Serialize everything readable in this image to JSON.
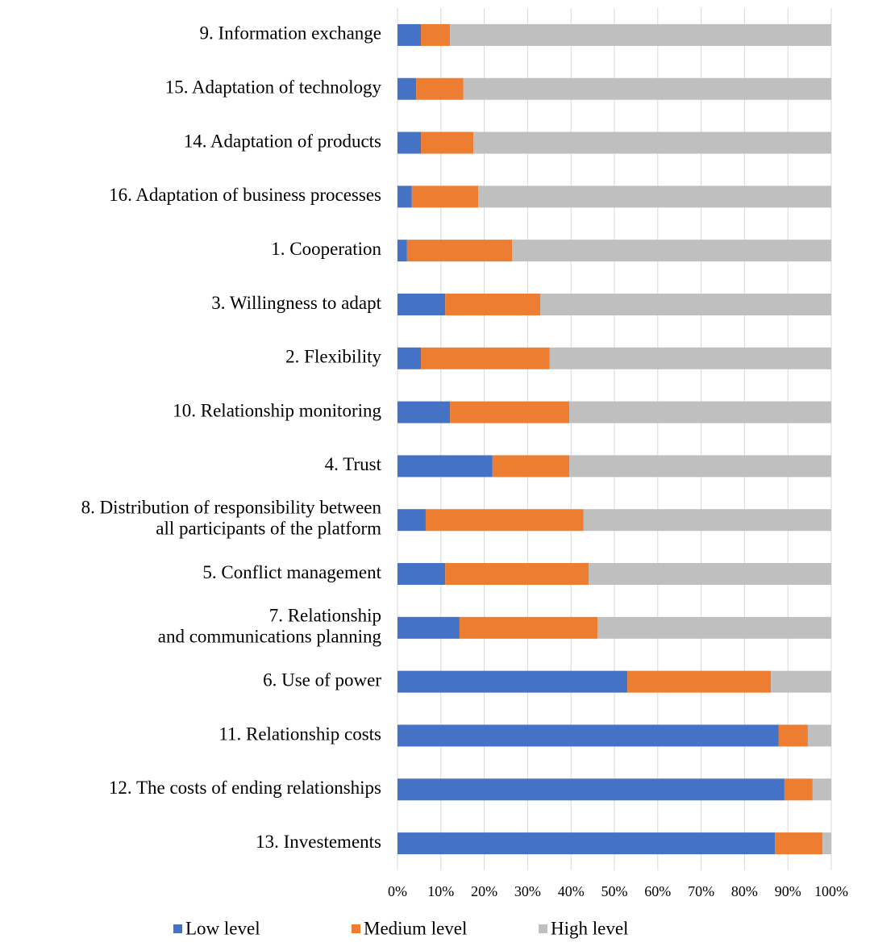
{
  "chart_data": {
    "type": "stacked-barh",
    "categories": [
      "9. Information exchange",
      "15. Adaptation of technology",
      "14. Adaptation of products",
      "16. Adaptation of business processes",
      "1. Cooperation",
      "3. Willingness to adapt",
      "2. Flexibility",
      "10. Relationship monitoring",
      "4. Trust",
      "8. Distribution of responsibility between\nall participants of the platform",
      "5. Conflict management",
      "7. Relationship\nand communications planning",
      "6. Use of power",
      "11. Relationship costs",
      "12. The costs of ending relationships",
      "13. Investements"
    ],
    "series": [
      {
        "name": "Low level",
        "color": "#4472c4",
        "values": [
          5.4,
          4.3,
          5.4,
          3.3,
          2.2,
          11.0,
          5.4,
          12.1,
          21.9,
          6.5,
          11.0,
          14.3,
          53.0,
          87.9,
          89.2,
          87.0
        ]
      },
      {
        "name": "Medium level",
        "color": "#ed7d31",
        "values": [
          6.7,
          10.9,
          12.1,
          15.3,
          24.2,
          21.9,
          29.7,
          27.5,
          17.7,
          36.4,
          33.1,
          31.8,
          33.1,
          6.7,
          6.5,
          11.0
        ]
      },
      {
        "name": "High level",
        "color": "#bfbfbf",
        "values": [
          87.9,
          84.8,
          82.5,
          81.4,
          73.6,
          67.1,
          64.9,
          60.4,
          60.4,
          57.1,
          55.9,
          53.9,
          13.9,
          5.4,
          4.3,
          2.0
        ]
      }
    ],
    "xlim": [
      0,
      100
    ],
    "xticks": [
      {
        "value": 0,
        "label": "0%"
      },
      {
        "value": 10,
        "label": "10%"
      },
      {
        "value": 20,
        "label": "20%"
      },
      {
        "value": 30,
        "label": "30%"
      },
      {
        "value": 40,
        "label": "40%"
      },
      {
        "value": 50,
        "label": "50%"
      },
      {
        "value": 60,
        "label": "60%"
      },
      {
        "value": 70,
        "label": "70%"
      },
      {
        "value": 80,
        "label": "80%"
      },
      {
        "value": 90,
        "label": "90%"
      },
      {
        "value": 100,
        "label": "100%"
      }
    ],
    "grid": true,
    "legend": "bottom"
  }
}
